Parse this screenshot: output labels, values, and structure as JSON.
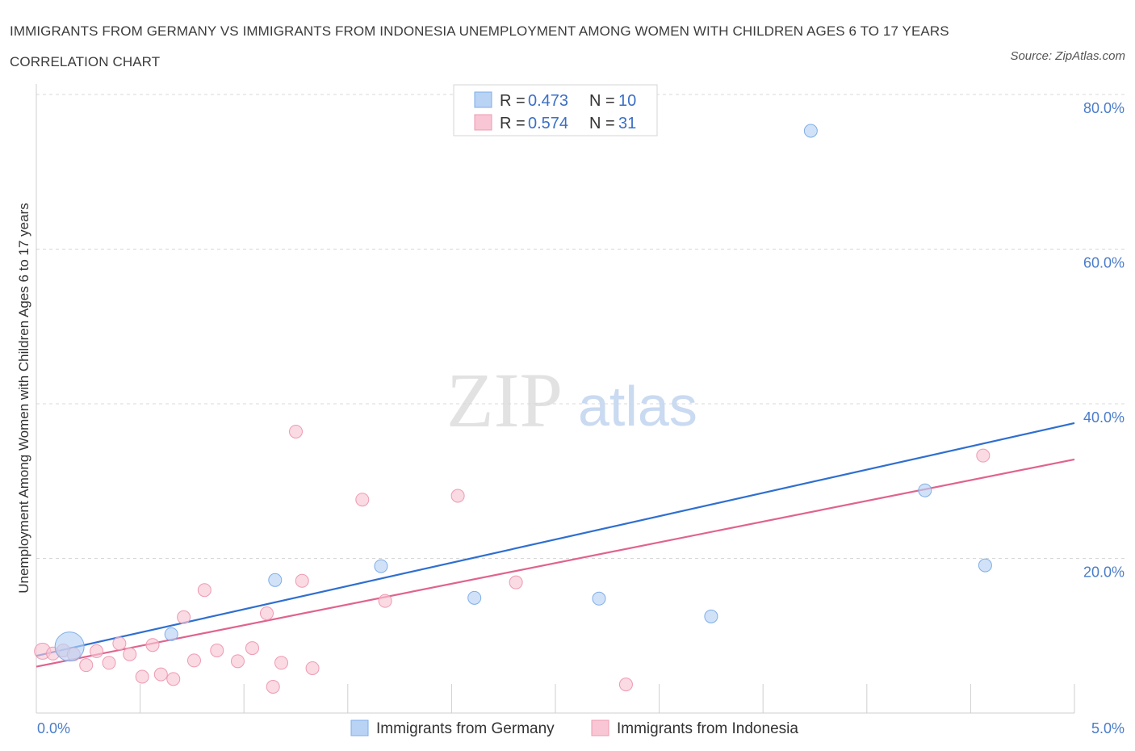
{
  "title": "IMMIGRANTS FROM GERMANY VS IMMIGRANTS FROM INDONESIA UNEMPLOYMENT AMONG WOMEN WITH CHILDREN AGES 6 TO 17 YEARS CORRELATION CHART",
  "source": "Source: ZipAtlas.com",
  "watermark": {
    "zip": "ZIP",
    "atlas": "atlas"
  },
  "legend": {
    "rows": [
      {
        "r_label": "R =",
        "r_value": "0.473",
        "n_label": "N =",
        "n_value": "10"
      },
      {
        "r_label": "R =",
        "r_value": "0.574",
        "n_label": "N =",
        "n_value": "31"
      }
    ]
  },
  "colors": {
    "germany_fill": "#b9d3f5",
    "germany_stroke": "#7eaee8",
    "germany_line": "#2f6fcf",
    "indonesia_fill": "#f8c6d4",
    "indonesia_stroke": "#ee9ab2",
    "indonesia_line": "#e0638e",
    "tick_text": "#4a7cc9",
    "grid": "#d8d8d8"
  },
  "chart_data": {
    "type": "scatter",
    "title": "IMMIGRANTS FROM GERMANY VS IMMIGRANTS FROM INDONESIA UNEMPLOYMENT AMONG WOMEN WITH CHILDREN AGES 6 TO 17 YEARS CORRELATION CHART",
    "xlabel": "",
    "ylabel": "Unemployment Among Women with Children Ages 6 to 17 years",
    "xlim": [
      0,
      5
    ],
    "ylim": [
      0,
      80
    ],
    "x_tick_labels": [
      "0.0%",
      "5.0%"
    ],
    "y_ticks": [
      20,
      40,
      60,
      80
    ],
    "y_tick_labels": [
      "20.0%",
      "40.0%",
      "60.0%",
      "80.0%"
    ],
    "grid": true,
    "legend_position": "top-center",
    "series": [
      {
        "name": "Immigrants from Germany",
        "color": "#b9d3f5",
        "points": [
          {
            "x": 0.16,
            "y": 8.6,
            "size": 18
          },
          {
            "x": 0.65,
            "y": 10.2,
            "size": 8
          },
          {
            "x": 1.15,
            "y": 17.2,
            "size": 8
          },
          {
            "x": 1.66,
            "y": 19.0,
            "size": 8
          },
          {
            "x": 2.11,
            "y": 14.9,
            "size": 8
          },
          {
            "x": 2.71,
            "y": 14.8,
            "size": 8
          },
          {
            "x": 3.25,
            "y": 12.5,
            "size": 8
          },
          {
            "x": 3.73,
            "y": 75.3,
            "size": 8
          },
          {
            "x": 4.28,
            "y": 28.8,
            "size": 8
          },
          {
            "x": 4.57,
            "y": 19.1,
            "size": 8
          }
        ],
        "trend": {
          "x": [
            0,
            5
          ],
          "y": [
            7.4,
            37.5
          ]
        }
      },
      {
        "name": "Immigrants from Indonesia",
        "color": "#f8c6d4",
        "points": [
          {
            "x": 0.03,
            "y": 8.0,
            "size": 10
          },
          {
            "x": 0.08,
            "y": 7.7,
            "size": 8
          },
          {
            "x": 0.13,
            "y": 8.1,
            "size": 8
          },
          {
            "x": 0.18,
            "y": 7.6,
            "size": 8
          },
          {
            "x": 0.24,
            "y": 6.2,
            "size": 8
          },
          {
            "x": 0.29,
            "y": 8.0,
            "size": 8
          },
          {
            "x": 0.35,
            "y": 6.5,
            "size": 8
          },
          {
            "x": 0.4,
            "y": 9.0,
            "size": 8
          },
          {
            "x": 0.45,
            "y": 7.6,
            "size": 8
          },
          {
            "x": 0.51,
            "y": 4.7,
            "size": 8
          },
          {
            "x": 0.56,
            "y": 8.8,
            "size": 8
          },
          {
            "x": 0.6,
            "y": 5.0,
            "size": 8
          },
          {
            "x": 0.66,
            "y": 4.4,
            "size": 8
          },
          {
            "x": 0.71,
            "y": 12.4,
            "size": 8
          },
          {
            "x": 0.76,
            "y": 6.8,
            "size": 8
          },
          {
            "x": 0.81,
            "y": 15.9,
            "size": 8
          },
          {
            "x": 0.87,
            "y": 8.1,
            "size": 8
          },
          {
            "x": 0.97,
            "y": 6.7,
            "size": 8
          },
          {
            "x": 1.04,
            "y": 8.4,
            "size": 8
          },
          {
            "x": 1.11,
            "y": 12.9,
            "size": 8
          },
          {
            "x": 1.14,
            "y": 3.4,
            "size": 8
          },
          {
            "x": 1.18,
            "y": 6.5,
            "size": 8
          },
          {
            "x": 1.25,
            "y": 36.4,
            "size": 8
          },
          {
            "x": 1.28,
            "y": 17.1,
            "size": 8
          },
          {
            "x": 1.33,
            "y": 5.8,
            "size": 8
          },
          {
            "x": 1.57,
            "y": 27.6,
            "size": 8
          },
          {
            "x": 1.68,
            "y": 14.5,
            "size": 8
          },
          {
            "x": 2.03,
            "y": 28.1,
            "size": 8
          },
          {
            "x": 2.31,
            "y": 16.9,
            "size": 8
          },
          {
            "x": 2.84,
            "y": 3.7,
            "size": 8
          },
          {
            "x": 4.56,
            "y": 33.3,
            "size": 8
          }
        ],
        "trend": {
          "x": [
            0,
            5
          ],
          "y": [
            6.0,
            32.8
          ]
        }
      }
    ]
  }
}
